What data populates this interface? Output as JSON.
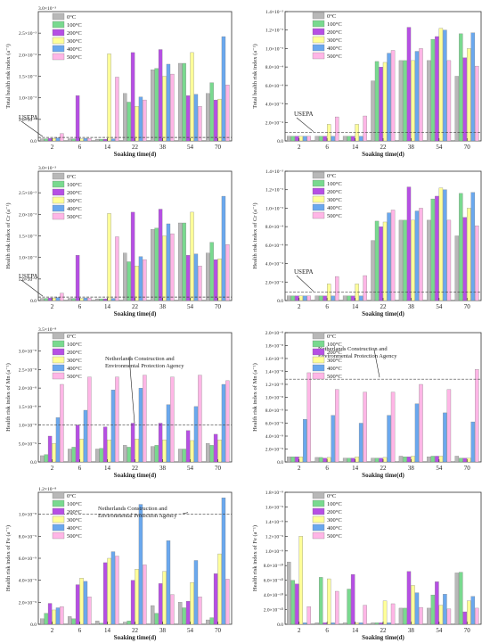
{
  "legend_labels": [
    "0°C",
    "100°C",
    "200°C",
    "300°C",
    "400°C",
    "500°C"
  ],
  "colors": [
    "#b8b8b8",
    "#79d98f",
    "#b64fe4",
    "#ffff99",
    "#6aa8ee",
    "#ffb6e6"
  ],
  "chart_data": [
    {
      "type": "bar",
      "ylabel": "Total health risk index (a⁻¹)",
      "xlabel": "Soaking time(d)",
      "categories": [
        "2",
        "6",
        "14",
        "22",
        "38",
        "54",
        "70"
      ],
      "scale_label": "3.0×10⁻³",
      "ytick_labels": [
        "0.0",
        "5.0×10⁻⁴",
        "1.0×10⁻³",
        "1.5×10⁻³",
        "2.0×10⁻³",
        "2.5×10⁻³"
      ],
      "ylim": [
        0,
        3.0
      ],
      "ref_label": "USEPA",
      "ref_value": 0.08,
      "series": [
        {
          "name": "0°C",
          "values": [
            0.05,
            0.05,
            0.04,
            1.1,
            1.65,
            1.8,
            1.1
          ]
        },
        {
          "name": "100°C",
          "values": [
            0.05,
            0.05,
            0.04,
            0.9,
            1.68,
            1.8,
            1.35
          ]
        },
        {
          "name": "200°C",
          "values": [
            0.06,
            1.05,
            0.04,
            2.05,
            2.12,
            1.05,
            0.95
          ]
        },
        {
          "name": "300°C",
          "values": [
            0.06,
            0.05,
            2.02,
            0.8,
            1.5,
            2.05,
            0.97
          ]
        },
        {
          "name": "400°C",
          "values": [
            0.07,
            0.06,
            0.05,
            1.02,
            1.78,
            1.08,
            2.42
          ]
        },
        {
          "name": "500°C",
          "values": [
            0.17,
            0.06,
            1.48,
            0.95,
            1.55,
            0.8,
            1.3
          ]
        }
      ]
    },
    {
      "type": "bar",
      "ylabel": "Total health risk index (a⁻¹)",
      "xlabel": "Soaking time(d)",
      "categories": [
        "2",
        "6",
        "14",
        "22",
        "38",
        "54",
        "70"
      ],
      "ytick_labels": [
        "0.0",
        "2.0×10⁻⁴",
        "4.0×10⁻⁴",
        "6.0×10⁻⁴",
        "8.0×10⁻⁴",
        "1.0×10⁻³",
        "1.2×10⁻³",
        "1.4×10⁻³"
      ],
      "ylim": [
        0,
        1.4
      ],
      "ref_label": "USEPA",
      "ref_value": 0.09,
      "series": [
        {
          "name": "0°C",
          "values": [
            0.05,
            0.05,
            0.05,
            0.65,
            0.87,
            0.87,
            0.7
          ]
        },
        {
          "name": "100°C",
          "values": [
            0.05,
            0.05,
            0.05,
            0.86,
            0.87,
            1.1,
            1.16
          ]
        },
        {
          "name": "200°C",
          "values": [
            0.05,
            0.05,
            0.05,
            0.8,
            1.23,
            1.13,
            0.9
          ]
        },
        {
          "name": "300°C",
          "values": [
            0.05,
            0.18,
            0.18,
            0.85,
            0.87,
            1.22,
            1.0
          ]
        },
        {
          "name": "400°C",
          "values": [
            0.05,
            0.05,
            0.05,
            0.95,
            0.97,
            1.2,
            1.17
          ]
        },
        {
          "name": "500°C",
          "values": [
            0.05,
            0.26,
            0.27,
            0.98,
            1.0,
            0.87,
            0.81
          ]
        }
      ]
    },
    {
      "type": "bar",
      "ylabel": "Health risk index of Cr (a⁻¹)",
      "xlabel": "Soaking time(d)",
      "categories": [
        "2",
        "6",
        "14",
        "22",
        "38",
        "54",
        "70"
      ],
      "scale_label": "3.0×10⁻³",
      "ytick_labels": [
        "0.0",
        "5.0×10⁻⁴",
        "1.0×10⁻³",
        "1.5×10⁻³",
        "2.0×10⁻³",
        "2.5×10⁻³"
      ],
      "ylim": [
        0,
        3.0
      ],
      "ref_label": "USEPA",
      "ref_value": 0.08,
      "series": [
        {
          "name": "0°C",
          "values": [
            0.05,
            0.05,
            0.04,
            1.1,
            1.65,
            1.8,
            1.1
          ]
        },
        {
          "name": "100°C",
          "values": [
            0.05,
            0.05,
            0.04,
            0.9,
            1.68,
            1.8,
            1.35
          ]
        },
        {
          "name": "200°C",
          "values": [
            0.06,
            1.05,
            0.04,
            2.05,
            2.12,
            1.05,
            0.95
          ]
        },
        {
          "name": "300°C",
          "values": [
            0.06,
            0.05,
            2.02,
            0.8,
            1.5,
            2.05,
            0.97
          ]
        },
        {
          "name": "400°C",
          "values": [
            0.07,
            0.06,
            0.05,
            1.02,
            1.78,
            1.08,
            2.42
          ]
        },
        {
          "name": "500°C",
          "values": [
            0.17,
            0.06,
            1.48,
            0.95,
            1.55,
            0.8,
            1.3
          ]
        }
      ]
    },
    {
      "type": "bar",
      "ylabel": "Health risk index of Cr (a⁻¹)",
      "xlabel": "Soaking time(d)",
      "categories": [
        "2",
        "6",
        "14",
        "22",
        "38",
        "54",
        "70"
      ],
      "ytick_labels": [
        "0.0",
        "2.0×10⁻⁴",
        "4.0×10⁻⁴",
        "6.0×10⁻⁴",
        "8.0×10⁻⁴",
        "1.0×10⁻³",
        "1.2×10⁻³",
        "1.4×10⁻³"
      ],
      "ylim": [
        0,
        1.4
      ],
      "ref_label": "USEPA",
      "ref_value": 0.09,
      "series": [
        {
          "name": "0°C",
          "values": [
            0.05,
            0.05,
            0.05,
            0.65,
            0.87,
            0.87,
            0.7
          ]
        },
        {
          "name": "100°C",
          "values": [
            0.05,
            0.05,
            0.05,
            0.86,
            0.87,
            1.1,
            1.16
          ]
        },
        {
          "name": "200°C",
          "values": [
            0.05,
            0.05,
            0.05,
            0.8,
            1.23,
            1.13,
            0.9
          ]
        },
        {
          "name": "300°C",
          "values": [
            0.05,
            0.18,
            0.18,
            0.85,
            0.87,
            1.22,
            1.0
          ]
        },
        {
          "name": "400°C",
          "values": [
            0.05,
            0.05,
            0.05,
            0.95,
            0.97,
            1.2,
            1.17
          ]
        },
        {
          "name": "500°C",
          "values": [
            0.05,
            0.26,
            0.27,
            0.98,
            1.0,
            0.87,
            0.81
          ]
        }
      ]
    },
    {
      "type": "bar",
      "ylabel": "Health risk index of Mn (a⁻¹)",
      "xlabel": "Soaking time(d)",
      "categories": [
        "2",
        "6",
        "14",
        "22",
        "38",
        "54",
        "70"
      ],
      "scale_label": "3.5×10⁻⁸",
      "ytick_labels": [
        "0.0",
        "5.0×10⁻⁹",
        "1.0×10⁻⁸",
        "1.5×10⁻⁸",
        "2.0×10⁻⁸",
        "2.5×10⁻⁸",
        "3.0×10⁻⁸"
      ],
      "ylim": [
        0,
        3.5
      ],
      "ref_label": "Netherlands Construction and Environmental Protection Agency",
      "ref_value": 1.0,
      "series": [
        {
          "name": "0°C",
          "values": [
            0.17,
            0.35,
            0.35,
            0.45,
            0.42,
            0.35,
            0.5
          ]
        },
        {
          "name": "100°C",
          "values": [
            0.2,
            0.4,
            0.37,
            0.4,
            0.45,
            0.35,
            0.45
          ]
        },
        {
          "name": "200°C",
          "values": [
            0.7,
            1.0,
            0.95,
            1.05,
            1.05,
            0.85,
            0.75
          ]
        },
        {
          "name": "300°C",
          "values": [
            0.5,
            0.62,
            0.6,
            0.62,
            0.6,
            0.58,
            0.6
          ]
        },
        {
          "name": "400°C",
          "values": [
            1.2,
            1.4,
            1.95,
            2.0,
            1.55,
            1.5,
            2.1
          ]
        },
        {
          "name": "500°C",
          "values": [
            2.1,
            2.3,
            2.3,
            2.35,
            2.3,
            2.35,
            2.2
          ]
        }
      ]
    },
    {
      "type": "bar",
      "ylabel": "Health risk index of Mn (a⁻¹)",
      "xlabel": "Soaking time(d)",
      "categories": [
        "2",
        "6",
        "14",
        "22",
        "38",
        "54",
        "70"
      ],
      "ytick_labels": [
        "0.0",
        "2.0×10⁻⁹",
        "4.0×10⁻⁹",
        "6.0×10⁻⁹",
        "8.0×10⁻⁹",
        "1.0×10⁻⁸",
        "1.2×10⁻⁸",
        "1.4×10⁻⁸",
        "1.6×10⁻⁸",
        "1.8×10⁻⁸",
        "2.0×10⁻⁸"
      ],
      "ylim": [
        0,
        2.0
      ],
      "ref_label": "Netherlands Construction and Environmental Protection Agency",
      "ref_value": 1.28,
      "series": [
        {
          "name": "0°C",
          "values": [
            0.08,
            0.07,
            0.06,
            0.06,
            0.09,
            0.08,
            0.09
          ]
        },
        {
          "name": "100°C",
          "values": [
            0.08,
            0.07,
            0.06,
            0.06,
            0.08,
            0.09,
            0.06
          ]
        },
        {
          "name": "200°C",
          "values": [
            0.08,
            0.06,
            0.06,
            0.06,
            0.08,
            0.09,
            0.06
          ]
        },
        {
          "name": "300°C",
          "values": [
            0.08,
            0.07,
            0.08,
            0.07,
            0.09,
            0.09,
            0.06
          ]
        },
        {
          "name": "400°C",
          "values": [
            0.66,
            0.72,
            0.6,
            0.72,
            0.9,
            0.76,
            0.62
          ]
        },
        {
          "name": "500°C",
          "values": [
            1.38,
            1.12,
            1.08,
            1.08,
            1.2,
            1.12,
            1.43
          ]
        }
      ]
    },
    {
      "type": "bar",
      "ylabel": "Health risk index of Fe (a⁻¹)",
      "xlabel": "Soaking time(d)",
      "categories": [
        "2",
        "6",
        "14",
        "22",
        "38",
        "54",
        "70"
      ],
      "scale_label": "1.2×10⁻⁸",
      "ytick_labels": [
        "0.0",
        "2.0×10⁻⁹",
        "4.0×10⁻⁹",
        "6.0×10⁻⁹",
        "8.0×10⁻⁹",
        "1.0×10⁻⁸"
      ],
      "ylim": [
        0,
        1.2
      ],
      "ref_label": "Netherlands Construction and Environmental Protection Agency",
      "ref_value": 1.0,
      "series": [
        {
          "name": "0°C",
          "values": [
            0.05,
            0.07,
            0.03,
            0.02,
            0.17,
            0.2,
            0.04
          ]
        },
        {
          "name": "100°C",
          "values": [
            0.1,
            0.05,
            0.01,
            0.03,
            0.1,
            0.15,
            0.06
          ]
        },
        {
          "name": "200°C",
          "values": [
            0.19,
            0.36,
            0.56,
            0.4,
            0.37,
            0.21,
            0.46
          ]
        },
        {
          "name": "300°C",
          "values": [
            0.13,
            0.42,
            0.6,
            0.5,
            0.48,
            0.38,
            0.64
          ]
        },
        {
          "name": "400°C",
          "values": [
            0.15,
            0.39,
            0.66,
            1.09,
            0.76,
            0.58,
            1.15
          ]
        },
        {
          "name": "500°C",
          "values": [
            0.16,
            0.25,
            0.62,
            0.54,
            0.27,
            0.25,
            0.41
          ]
        }
      ]
    },
    {
      "type": "bar",
      "ylabel": "Health risk index of Fe (a⁻¹)",
      "xlabel": "Soaking time(d)",
      "categories": [
        "2",
        "6",
        "14",
        "22",
        "38",
        "54",
        "70"
      ],
      "ytick_labels": [
        "0.0",
        "2.0×10⁻¹⁰",
        "4.0×10⁻¹⁰",
        "6.0×10⁻¹⁰",
        "8.0×10⁻¹⁰",
        "1.0×10⁻⁹",
        "1.2×10⁻⁹",
        "1.4×10⁻⁹",
        "1.6×10⁻⁹",
        "1.8×10⁻⁹"
      ],
      "ylim": [
        0,
        1.8
      ],
      "series": [
        {
          "name": "0°C",
          "values": [
            0.85,
            0.02,
            0.02,
            0.02,
            0.22,
            0.22,
            0.7
          ]
        },
        {
          "name": "100°C",
          "values": [
            0.6,
            0.64,
            0.48,
            0.02,
            0.22,
            0.4,
            0.71
          ]
        },
        {
          "name": "200°C",
          "values": [
            0.55,
            0.02,
            0.68,
            0.02,
            0.72,
            0.58,
            0.17
          ]
        },
        {
          "name": "300°C",
          "values": [
            1.2,
            0.62,
            0.02,
            0.32,
            0.53,
            0.26,
            0.32
          ]
        },
        {
          "name": "400°C",
          "values": [
            0.02,
            0.02,
            0.02,
            0.02,
            0.43,
            0.41,
            0.38
          ]
        },
        {
          "name": "500°C",
          "values": [
            0.24,
            0.45,
            0.26,
            0.28,
            0.23,
            0.21,
            0.22
          ]
        }
      ]
    }
  ]
}
